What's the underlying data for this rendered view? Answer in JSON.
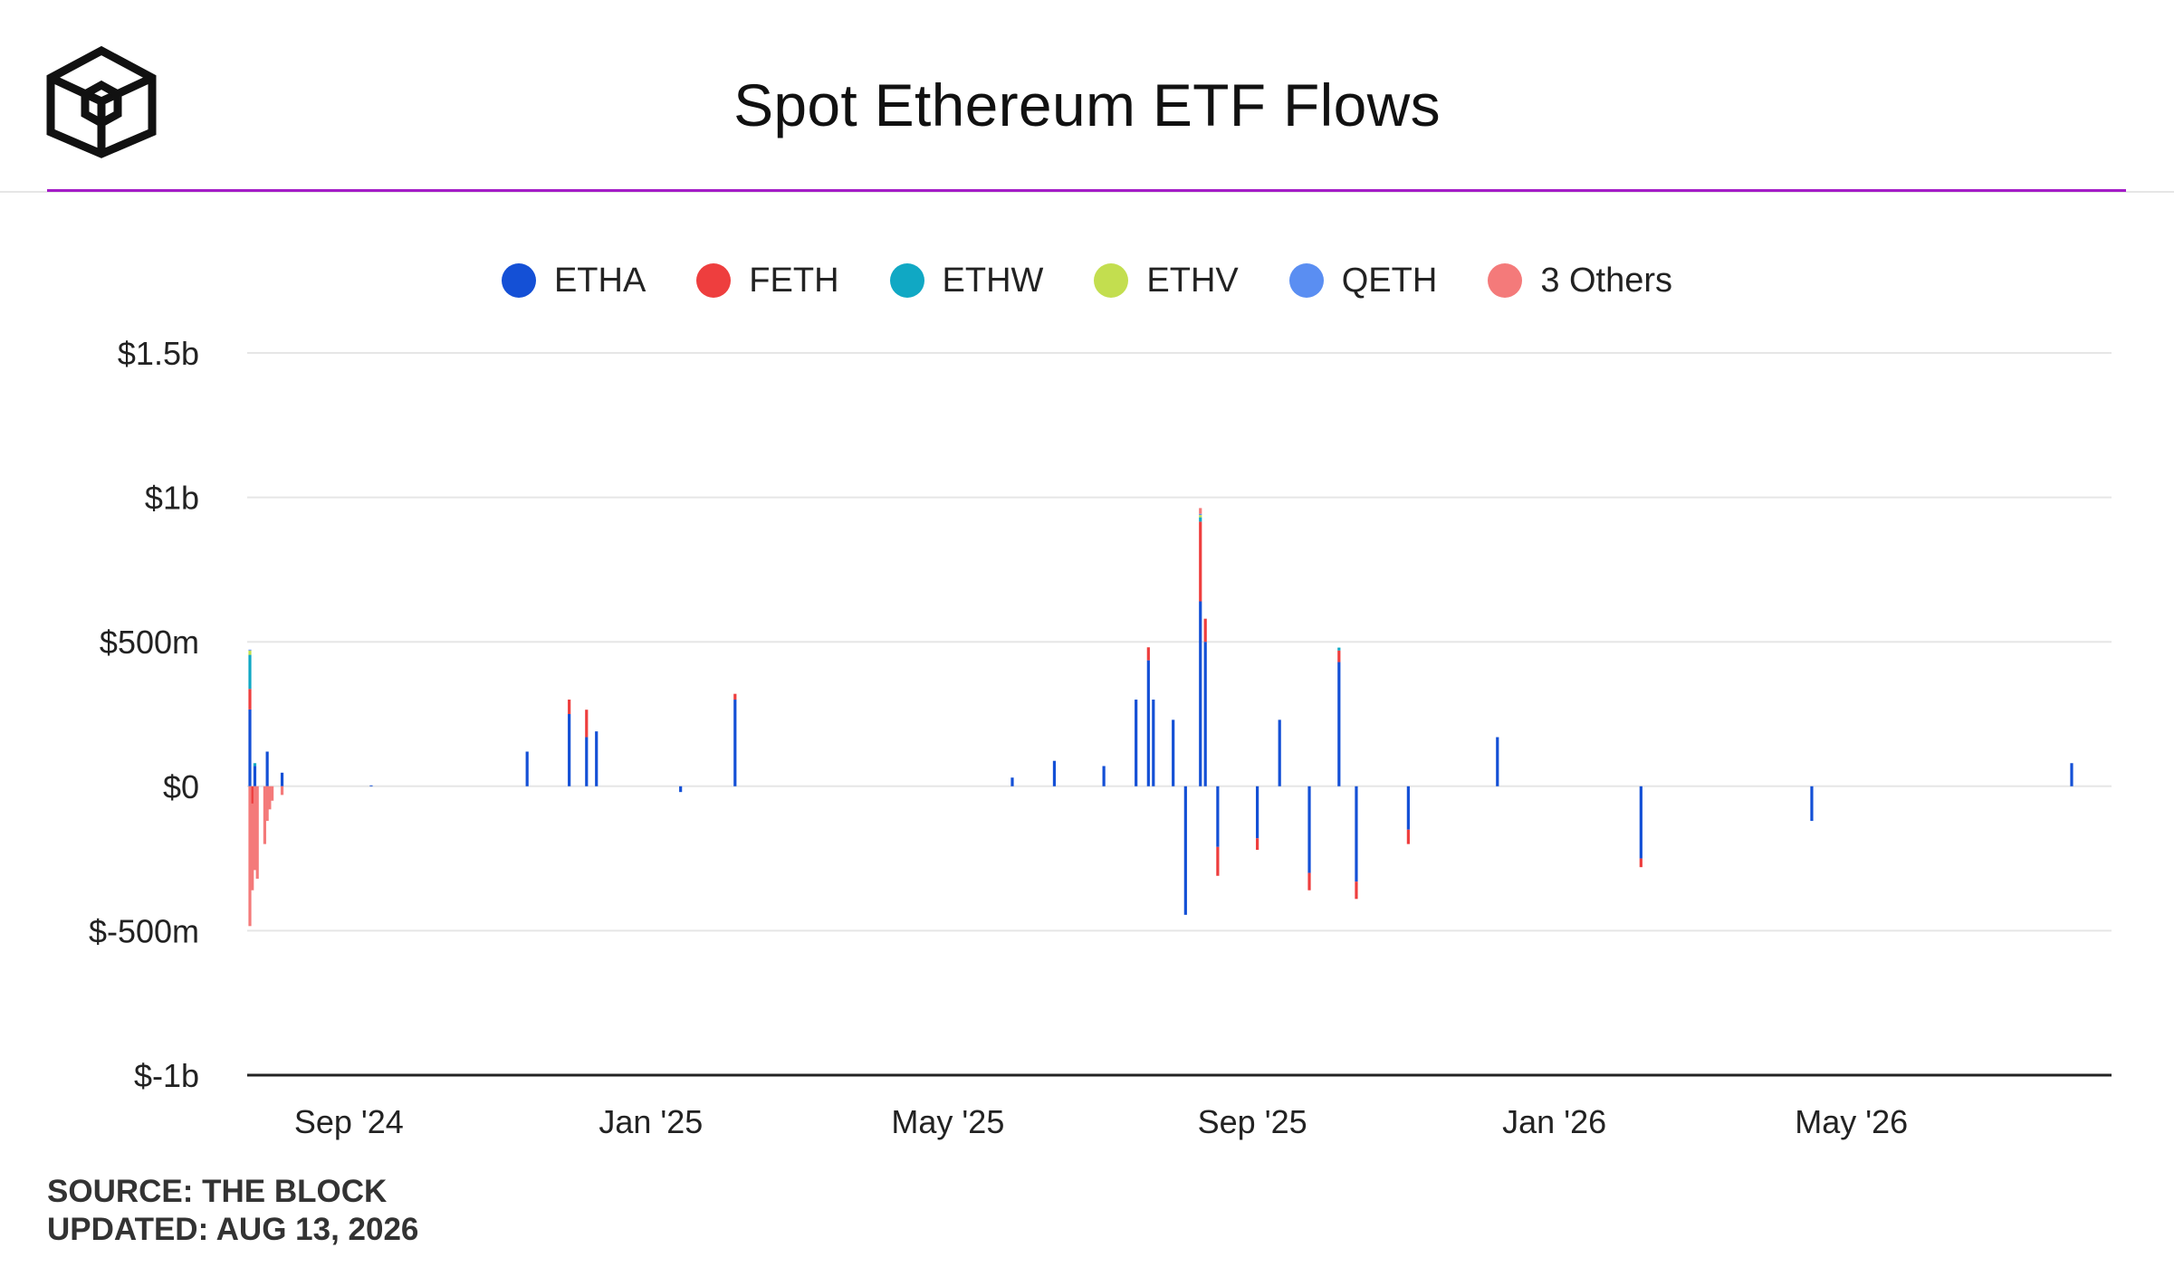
{
  "header": {
    "title": "Spot Ethereum ETF Flows",
    "logo_icon": "the-block-cube-logo-icon"
  },
  "footer": {
    "source": "SOURCE: THE BLOCK",
    "updated": "UPDATED: AUG 13, 2026"
  },
  "colors": {
    "accent_rule": "#a41cc7",
    "gridline": "#e6e6e6",
    "zero_axis": "#222222"
  },
  "chart_data": {
    "type": "bar",
    "stacked": true,
    "title": "Spot Ethereum ETF Flows",
    "xlabel": "",
    "ylabel": "",
    "ylim": [
      -1000000000,
      1500000000
    ],
    "y_ticks": [
      {
        "value": 1500000000,
        "label": "$1.5b"
      },
      {
        "value": 1000000000,
        "label": "$1b"
      },
      {
        "value": 500000000,
        "label": "$500m"
      },
      {
        "value": 0,
        "label": "$0"
      },
      {
        "value": -500000000,
        "label": "$-500m"
      },
      {
        "value": -1000000000,
        "label": "$-1b"
      }
    ],
    "x_range": [
      "2024-07-23",
      "2026-08-13"
    ],
    "x_ticks": [
      {
        "date": "2024-09-01",
        "label": "Sep '24"
      },
      {
        "date": "2025-01-01",
        "label": "Jan '25"
      },
      {
        "date": "2025-05-01",
        "label": "May '25"
      },
      {
        "date": "2025-09-01",
        "label": "Sep '25"
      },
      {
        "date": "2026-01-01",
        "label": "Jan '26"
      },
      {
        "date": "2026-05-01",
        "label": "May '26"
      }
    ],
    "grid": true,
    "legend_position": "top-center",
    "series": [
      {
        "name": "ETHA",
        "color": "#1450d6",
        "values": [
          [
            "2024-07-23",
            266000000
          ],
          [
            "2024-07-25",
            70000000
          ],
          [
            "2024-07-30",
            120000000
          ],
          [
            "2024-08-05",
            47000000
          ],
          [
            "2024-09-10",
            3000000
          ],
          [
            "2024-11-12",
            120000000
          ],
          [
            "2024-11-29",
            250000000
          ],
          [
            "2024-12-06",
            170000000
          ],
          [
            "2024-12-10",
            190000000
          ],
          [
            "2025-01-13",
            -20000000
          ],
          [
            "2025-02-04",
            300000000
          ],
          [
            "2025-05-27",
            30000000
          ],
          [
            "2025-06-13",
            88000000
          ],
          [
            "2025-07-03",
            70000000
          ],
          [
            "2025-07-16",
            300000000
          ],
          [
            "2025-07-21",
            436000000
          ],
          [
            "2025-07-23",
            300000000
          ],
          [
            "2025-07-31",
            230000000
          ],
          [
            "2025-08-05",
            -445000000
          ],
          [
            "2025-08-11",
            640000000
          ],
          [
            "2025-08-13",
            500000000
          ],
          [
            "2025-08-18",
            -210000000
          ],
          [
            "2025-09-03",
            -180000000
          ],
          [
            "2025-09-12",
            230000000
          ],
          [
            "2025-09-24",
            -300000000
          ],
          [
            "2025-10-06",
            430000000
          ],
          [
            "2025-10-13",
            -330000000
          ],
          [
            "2025-11-03",
            -150000000
          ],
          [
            "2025-12-09",
            170000000
          ],
          [
            "2026-02-05",
            -250000000
          ],
          [
            "2026-04-15",
            -120000000
          ],
          [
            "2026-07-29",
            80000000
          ]
        ]
      },
      {
        "name": "FETH",
        "color": "#ee3e3e",
        "values": [
          [
            "2024-07-23",
            71000000
          ],
          [
            "2024-07-24",
            -60000000
          ],
          [
            "2024-11-29",
            50000000
          ],
          [
            "2024-12-06",
            95000000
          ],
          [
            "2025-02-04",
            20000000
          ],
          [
            "2025-07-21",
            45000000
          ],
          [
            "2025-08-11",
            276000000
          ],
          [
            "2025-08-13",
            80000000
          ],
          [
            "2025-08-18",
            -100000000
          ],
          [
            "2025-09-03",
            -40000000
          ],
          [
            "2025-09-24",
            -60000000
          ],
          [
            "2025-10-06",
            40000000
          ],
          [
            "2025-10-13",
            -60000000
          ],
          [
            "2025-11-03",
            -50000000
          ],
          [
            "2026-02-05",
            -30000000
          ]
        ]
      },
      {
        "name": "ETHW",
        "color": "#10a8c4",
        "values": [
          [
            "2024-07-23",
            118000000
          ],
          [
            "2024-07-25",
            10000000
          ],
          [
            "2025-08-11",
            15000000
          ],
          [
            "2025-10-06",
            10000000
          ]
        ]
      },
      {
        "name": "ETHV",
        "color": "#c3de4f",
        "values": [
          [
            "2024-07-23",
            15000000
          ],
          [
            "2025-08-11",
            8000000
          ]
        ]
      },
      {
        "name": "QETH",
        "color": "#5a8ef2",
        "values": [
          [
            "2024-07-23",
            3000000
          ],
          [
            "2025-08-11",
            4000000
          ]
        ]
      },
      {
        "name": "3 Others",
        "color": "#f47a7a",
        "values": [
          [
            "2024-07-23",
            -484000000
          ],
          [
            "2024-07-24",
            -300000000
          ],
          [
            "2024-07-25",
            -290000000
          ],
          [
            "2024-07-26",
            -320000000
          ],
          [
            "2024-07-29",
            -200000000
          ],
          [
            "2024-07-30",
            -120000000
          ],
          [
            "2024-07-31",
            -80000000
          ],
          [
            "2024-08-01",
            -50000000
          ],
          [
            "2024-08-05",
            -30000000
          ],
          [
            "2025-08-11",
            20000000
          ]
        ]
      }
    ]
  }
}
